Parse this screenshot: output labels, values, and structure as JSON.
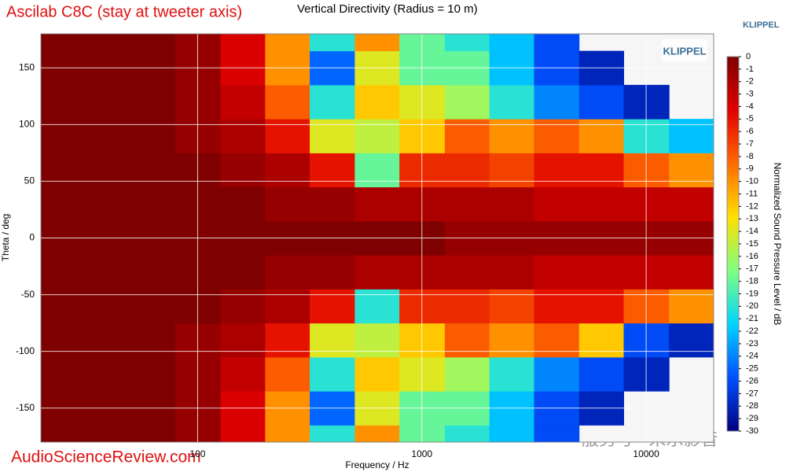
{
  "chart_data": {
    "type": "heatmap",
    "title": "Ascilab C8C (stay at tweeter axis)",
    "subtitle": "Vertical Directivity (Radius = 10 m)",
    "brand": "KLIPPEL",
    "logo": "KLIPPEL",
    "x_label": "Frequency / Hz",
    "y_label": "Theta / deg",
    "colorbar_label": "Normalized Sound Pressure Level / dB",
    "source": "AudioScienceReview.com",
    "watermark": "服务号 · 米乐影音",
    "log_x": true,
    "grid": true,
    "xlim": [
      20,
      20000
    ],
    "xticks": [
      100,
      1000,
      10000
    ],
    "ylim": [
      -180,
      180
    ],
    "yticks": [
      -150,
      -100,
      -50,
      0,
      50,
      100,
      150
    ],
    "zlim": [
      -30,
      0
    ],
    "zticks": [
      0,
      -1,
      -2,
      -3,
      -4,
      -5,
      -6,
      -7,
      -8,
      -9,
      -10,
      -11,
      -12,
      -13,
      -14,
      -15,
      -16,
      -17,
      -18,
      -19,
      -20,
      -21,
      -22,
      -23,
      -24,
      -25,
      -26,
      -27,
      -28,
      -29,
      -30
    ],
    "colormap": [
      "#7f0000",
      "#e00000",
      "#ff6a00",
      "#ffe000",
      "#7fff7f",
      "#00d4ff",
      "#0050ff",
      "#00007f"
    ],
    "x": [
      25,
      40,
      63,
      100,
      160,
      250,
      400,
      630,
      1000,
      1600,
      2500,
      4000,
      6300,
      10000,
      16000
    ],
    "y": [
      -180,
      -150,
      -120,
      -90,
      -60,
      -30,
      0,
      30,
      60,
      90,
      120,
      150,
      180
    ],
    "z": [
      [
        0,
        0,
        0,
        -1,
        -4,
        -10,
        -20,
        -10,
        -18,
        -20,
        -22,
        -26,
        null,
        null,
        null
      ],
      [
        0,
        0,
        0,
        -1,
        -4,
        -10,
        -25,
        -14,
        -18,
        -18,
        -22,
        -26,
        -28,
        null,
        null
      ],
      [
        0,
        0,
        0,
        -1,
        -3,
        -8,
        -20,
        -12,
        -14,
        -16,
        -20,
        -24,
        -26,
        -28,
        null
      ],
      [
        0,
        0,
        0,
        -1,
        -2,
        -5,
        -14,
        -15,
        -12,
        -8,
        -10,
        -8,
        -12,
        -26,
        -28
      ],
      [
        0,
        0,
        0,
        0,
        -1,
        -2,
        -5,
        -20,
        -6,
        -6,
        -7,
        -5,
        -5,
        -8,
        -10
      ],
      [
        0,
        0,
        0,
        0,
        0,
        -1,
        -1,
        -2,
        -2,
        -2,
        -2,
        -3,
        -3,
        -3,
        -3
      ],
      [
        0,
        0,
        0,
        0,
        0,
        0,
        0,
        0,
        0,
        -1,
        -1,
        -1,
        -1,
        -1,
        -1
      ],
      [
        0,
        0,
        0,
        0,
        0,
        -1,
        -1,
        -2,
        -2,
        -2,
        -2,
        -3,
        -3,
        -3,
        -3
      ],
      [
        0,
        0,
        0,
        0,
        -1,
        -2,
        -5,
        -18,
        -6,
        -6,
        -7,
        -5,
        -5,
        -8,
        -10
      ],
      [
        0,
        0,
        0,
        -1,
        -2,
        -5,
        -14,
        -15,
        -12,
        -8,
        -10,
        -8,
        -10,
        -20,
        -22
      ],
      [
        0,
        0,
        0,
        -1,
        -3,
        -8,
        -20,
        -12,
        -14,
        -16,
        -20,
        -24,
        -26,
        -28,
        null
      ],
      [
        0,
        0,
        0,
        -1,
        -4,
        -10,
        -25,
        -14,
        -18,
        -18,
        -22,
        -26,
        -28,
        null,
        null
      ],
      [
        0,
        0,
        0,
        -1,
        -4,
        -10,
        -20,
        -10,
        -18,
        -20,
        -22,
        -26,
        null,
        null,
        null
      ]
    ]
  }
}
